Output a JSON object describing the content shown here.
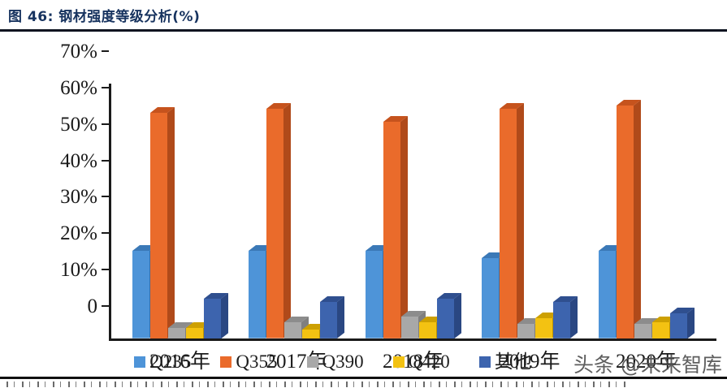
{
  "header": {
    "title": "图 46: 钢材强度等级分析(%)"
  },
  "watermark": {
    "text": "头条 @未来智库"
  },
  "chart_data": {
    "type": "bar",
    "style": "3d-grouped-column",
    "title": "钢材强度等级分析(%)",
    "categories": [
      "2016年",
      "2017年",
      "2018年",
      "2019年",
      "2020年"
    ],
    "series": [
      {
        "name": "Q235",
        "color": "#4E94D8",
        "color_top": "#3B79B7",
        "color_side": "#366FA9",
        "values": [
          24,
          24,
          24,
          22,
          24
        ]
      },
      {
        "name": "Q355",
        "color": "#EA6B2B",
        "color_top": "#C6531D",
        "color_side": "#B04A1A",
        "values": [
          62,
          63,
          59.5,
          63,
          64
        ]
      },
      {
        "name": "Q390",
        "color": "#A8A8A8",
        "color_top": "#8C8C8C",
        "color_side": "#7F7F7F",
        "values": [
          3,
          4.5,
          6,
          4,
          4
        ]
      },
      {
        "name": "Q420",
        "color": "#F3C212",
        "color_top": "#CDA002",
        "color_side": "#BD9402",
        "values": [
          3,
          2.5,
          4.5,
          5.5,
          4.5
        ]
      },
      {
        "name": "其他",
        "color": "#3D64AE",
        "color_top": "#2F4F8F",
        "color_side": "#2A4782",
        "values": [
          11,
          10,
          11,
          10,
          7
        ]
      }
    ],
    "ylim": [
      0,
      70
    ],
    "y_ticks": [
      "0",
      "10%",
      "20%",
      "30%",
      "40%",
      "50%",
      "60%",
      "70%"
    ],
    "grid": false,
    "legend_position": "bottom"
  }
}
